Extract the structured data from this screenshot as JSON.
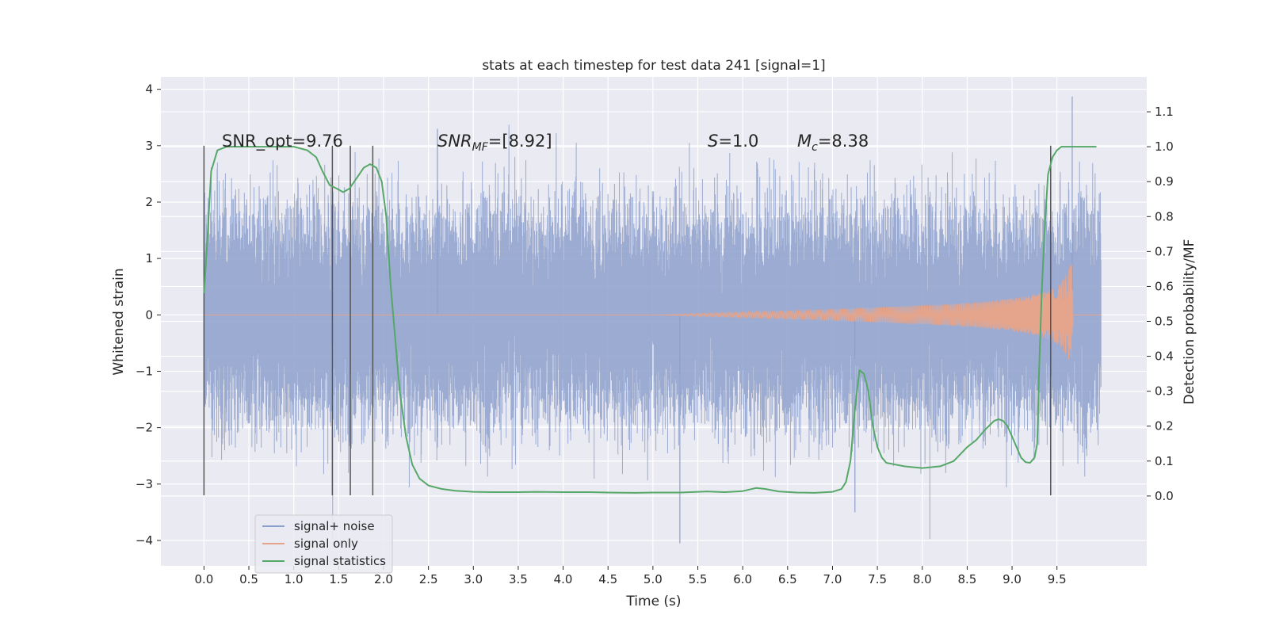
{
  "chart_data": {
    "type": "line",
    "title": "stats at each timestep for test data 241 [signal=1]",
    "xlabel": "Time (s)",
    "ylabel_left": "Whitened strain",
    "ylabel_right": "Detection probability/MF",
    "xlim": [
      -0.48,
      10.5
    ],
    "ylim_left": [
      -4.45,
      4.22
    ],
    "ylim_right": [
      -0.2,
      1.2
    ],
    "x_ticks": [
      "0.0",
      "0.5",
      "1.0",
      "1.5",
      "2.0",
      "2.5",
      "3.0",
      "3.5",
      "4.0",
      "4.5",
      "5.0",
      "5.5",
      "6.0",
      "6.5",
      "7.0",
      "7.5",
      "8.0",
      "8.5",
      "9.0",
      "9.5"
    ],
    "y_ticks_left": [
      "−4",
      "−3",
      "−2",
      "−1",
      "0",
      "1",
      "2",
      "3",
      "4"
    ],
    "y_ticks_right": [
      "0.0",
      "0.1",
      "0.2",
      "0.3",
      "0.4",
      "0.5",
      "0.6",
      "0.7",
      "0.8",
      "0.9",
      "1.0",
      "1.1"
    ],
    "grid": true,
    "legend_placement": "lower-left",
    "annotations": {
      "snr_opt": "SNR_opt=9.76",
      "snr_mf_prefix": "SNR",
      "snr_mf_sub": "MF",
      "snr_mf_suffix": "=[8.92]",
      "s_prefix": "S",
      "s_suffix": "=1.0",
      "mc_prefix": "M",
      "mc_sub": "c",
      "mc_suffix": "=8.38"
    },
    "vertical_markers": {
      "x": [
        0.0,
        1.43,
        1.63,
        1.88,
        9.43
      ],
      "ymin": -3.2,
      "ymax": 3.0,
      "color": "#555555"
    },
    "series": [
      {
        "name": "signal+ noise",
        "color": "#8da0cb",
        "axis": "left",
        "x_range": [
          0.0,
          9.99
        ],
        "envelope": {
          "x": [
            0.0,
            9.99
          ],
          "upper_typical": 1.8,
          "lower_typical": -1.8,
          "max": 3.87,
          "min": -4.05
        }
      },
      {
        "name": "signal only",
        "color": "#e5a58d",
        "axis": "left",
        "envelope": {
          "x": [
            0.0,
            5.0,
            6.0,
            7.0,
            8.0,
            8.5,
            9.0,
            9.3,
            9.5,
            9.6,
            9.67,
            9.68,
            9.99
          ],
          "amplitude": [
            0.0,
            0.0,
            0.05,
            0.1,
            0.17,
            0.21,
            0.29,
            0.37,
            0.5,
            0.7,
            0.95,
            0.0,
            0.0
          ]
        }
      },
      {
        "name": "signal statistics",
        "color": "#55a868",
        "axis": "right",
        "x": [
          0.0,
          0.03,
          0.08,
          0.15,
          0.25,
          0.4,
          0.6,
          0.8,
          1.0,
          1.15,
          1.25,
          1.32,
          1.4,
          1.48,
          1.55,
          1.62,
          1.7,
          1.78,
          1.85,
          1.92,
          1.98,
          2.03,
          2.08,
          2.13,
          2.18,
          2.25,
          2.32,
          2.4,
          2.5,
          2.65,
          2.8,
          3.0,
          3.2,
          3.5,
          3.7,
          4.0,
          4.3,
          4.5,
          4.8,
          5.0,
          5.3,
          5.6,
          5.8,
          6.0,
          6.1,
          6.15,
          6.25,
          6.4,
          6.6,
          6.8,
          7.0,
          7.1,
          7.15,
          7.2,
          7.25,
          7.3,
          7.35,
          7.4,
          7.45,
          7.5,
          7.55,
          7.6,
          7.7,
          7.8,
          8.0,
          8.2,
          8.35,
          8.5,
          8.6,
          8.7,
          8.8,
          8.85,
          8.9,
          8.95,
          9.0,
          9.05,
          9.1,
          9.15,
          9.2,
          9.25,
          9.28,
          9.3,
          9.33,
          9.36,
          9.4,
          9.45,
          9.5,
          9.55,
          9.6,
          9.7,
          9.8,
          9.9,
          9.94
        ],
        "y": [
          0.58,
          0.7,
          0.93,
          0.99,
          1.0,
          1.0,
          1.0,
          1.0,
          1.0,
          0.99,
          0.97,
          0.93,
          0.89,
          0.88,
          0.87,
          0.88,
          0.91,
          0.94,
          0.95,
          0.94,
          0.9,
          0.8,
          0.6,
          0.45,
          0.3,
          0.17,
          0.09,
          0.05,
          0.03,
          0.02,
          0.015,
          0.012,
          0.011,
          0.011,
          0.012,
          0.011,
          0.011,
          0.01,
          0.009,
          0.01,
          0.01,
          0.013,
          0.011,
          0.014,
          0.02,
          0.023,
          0.02,
          0.013,
          0.01,
          0.009,
          0.012,
          0.02,
          0.04,
          0.1,
          0.25,
          0.36,
          0.35,
          0.3,
          0.2,
          0.14,
          0.11,
          0.095,
          0.09,
          0.085,
          0.08,
          0.085,
          0.1,
          0.14,
          0.16,
          0.19,
          0.215,
          0.22,
          0.215,
          0.2,
          0.17,
          0.14,
          0.11,
          0.097,
          0.095,
          0.11,
          0.15,
          0.35,
          0.58,
          0.75,
          0.92,
          0.97,
          0.99,
          1.0,
          1.0,
          1.0,
          1.0,
          1.0,
          1.0
        ]
      }
    ]
  }
}
